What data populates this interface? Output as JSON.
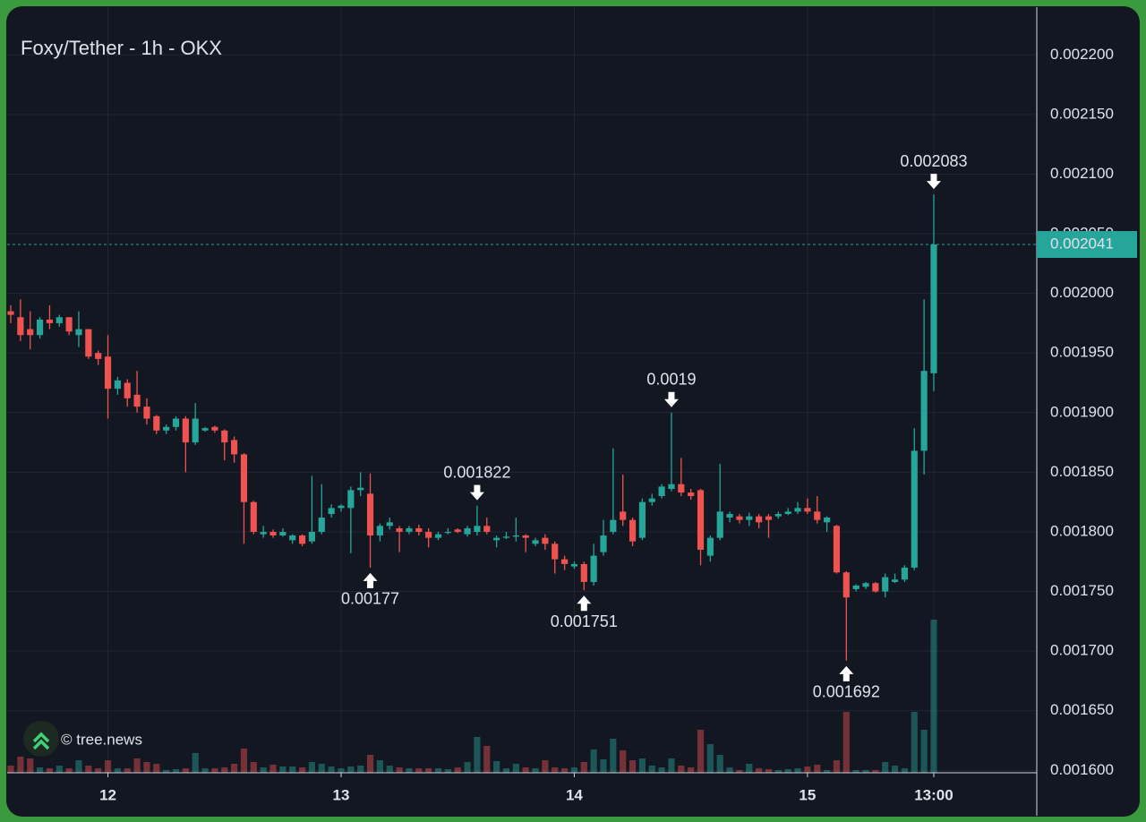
{
  "chart_data": {
    "type": "candlestick",
    "title": "Foxy/Tether - 1h - OKX",
    "watermark": "© tree.news",
    "up_color": "#26a69a",
    "down_color": "#ef5350",
    "grid": true,
    "open": [
      0.001985,
      0.00198,
      0.00197,
      0.001965,
      0.001978,
      0.001975,
      0.00198,
      0.001965,
      0.00197,
      0.00195,
      0.001947,
      0.00192,
      0.001925,
      0.001915,
      0.001905,
      0.001897,
      0.001885,
      0.001888,
      0.001895,
      0.001875,
      0.001885,
      0.001888,
      0.001885,
      0.001877,
      0.001865,
      0.001825,
      0.001798,
      0.0018,
      0.001797,
      0.001793,
      0.001797,
      0.001792,
      0.0018,
      0.001815,
      0.00182,
      0.00182,
      0.001835,
      0.001832,
      0.001797,
      0.001805,
      0.001803,
      0.0018,
      0.001803,
      0.0018,
      0.001795,
      0.0018,
      0.001802,
      0.001798,
      0.0018,
      0.001805,
      0.001793,
      0.001795,
      0.001796,
      0.001797,
      0.00179,
      0.001795,
      0.00179,
      0.001777,
      0.001771,
      0.001773,
      0.001758,
      0.001783,
      0.0018,
      0.001817,
      0.00181,
      0.001795,
      0.001825,
      0.00183,
      0.001836,
      0.00184,
      0.001833,
      0.001835,
      0.00178,
      0.001795,
      0.001812,
      0.001813,
      0.00181,
      0.001813,
      0.001813,
      0.001813,
      0.001815,
      0.001817,
      0.00182,
      0.001817,
      0.001808,
      0.001805,
      0.001766,
      0.001752,
      0.001754,
      0.001757,
      0.00175,
      0.001758,
      0.00176,
      0.00177,
      0.001868,
      0.001933
    ],
    "high": [
      0.00199,
      0.001995,
      0.001985,
      0.00198,
      0.00199,
      0.001982,
      0.00198,
      0.001985,
      0.00197,
      0.001952,
      0.001965,
      0.00193,
      0.001928,
      0.001935,
      0.001912,
      0.001898,
      0.00189,
      0.001897,
      0.001897,
      0.001908,
      0.001888,
      0.001889,
      0.001886,
      0.00188,
      0.001866,
      0.001826,
      0.001805,
      0.001802,
      0.001803,
      0.001798,
      0.001798,
      0.001847,
      0.00184,
      0.001823,
      0.001823,
      0.001838,
      0.00185,
      0.001849,
      0.001807,
      0.001812,
      0.001805,
      0.001805,
      0.001806,
      0.001803,
      0.0018,
      0.001803,
      0.001803,
      0.001805,
      0.001822,
      0.001812,
      0.001797,
      0.0018,
      0.001812,
      0.001798,
      0.001795,
      0.001798,
      0.001792,
      0.00178,
      0.001775,
      0.001775,
      0.00179,
      0.00181,
      0.00187,
      0.001848,
      0.001812,
      0.001828,
      0.001832,
      0.00184,
      0.0019,
      0.001862,
      0.001836,
      0.001836,
      0.001797,
      0.001857,
      0.001817,
      0.001815,
      0.001816,
      0.001815,
      0.001815,
      0.001817,
      0.00182,
      0.001825,
      0.001828,
      0.00183,
      0.001813,
      0.001806,
      0.001767,
      0.001756,
      0.001758,
      0.001758,
      0.001765,
      0.001765,
      0.001772,
      0.001887,
      0.001995,
      0.002083
    ],
    "low": [
      0.001975,
      0.00196,
      0.001953,
      0.001962,
      0.00197,
      0.001972,
      0.001965,
      0.001955,
      0.001945,
      0.00194,
      0.001895,
      0.001915,
      0.001905,
      0.0019,
      0.00189,
      0.001882,
      0.001882,
      0.001885,
      0.00185,
      0.001873,
      0.001884,
      0.001883,
      0.00186,
      0.001858,
      0.00179,
      0.001798,
      0.001795,
      0.001795,
      0.001796,
      0.00179,
      0.001788,
      0.00179,
      0.001798,
      0.001812,
      0.001817,
      0.001782,
      0.00183,
      0.00177,
      0.001792,
      0.001802,
      0.001783,
      0.001798,
      0.001797,
      0.001787,
      0.001793,
      0.001798,
      0.001799,
      0.001796,
      0.001797,
      0.001798,
      0.001787,
      0.001794,
      0.001792,
      0.001783,
      0.001788,
      0.001785,
      0.001765,
      0.001768,
      0.001769,
      0.001751,
      0.001755,
      0.00178,
      0.001798,
      0.001805,
      0.001788,
      0.001793,
      0.001822,
      0.001828,
      0.001834,
      0.00183,
      0.001827,
      0.001772,
      0.001775,
      0.001793,
      0.001808,
      0.001807,
      0.001805,
      0.001803,
      0.001795,
      0.001811,
      0.001814,
      0.001815,
      0.001815,
      0.001807,
      0.0018,
      0.001765,
      0.001692,
      0.00175,
      0.001752,
      0.001749,
      0.001745,
      0.001757,
      0.001758,
      0.001768,
      0.001848,
      0.001918
    ],
    "close": [
      0.001982,
      0.001965,
      0.001965,
      0.001978,
      0.001975,
      0.00198,
      0.001968,
      0.00197,
      0.001947,
      0.001945,
      0.00192,
      0.001927,
      0.001912,
      0.001905,
      0.001895,
      0.001885,
      0.001888,
      0.001895,
      0.001875,
      0.001895,
      0.001887,
      0.001885,
      0.001875,
      0.001865,
      0.001825,
      0.0018,
      0.0018,
      0.001797,
      0.0018,
      0.001797,
      0.00179,
      0.0018,
      0.001812,
      0.00182,
      0.001822,
      0.001835,
      0.001837,
      0.001797,
      0.001805,
      0.001808,
      0.0018,
      0.001803,
      0.0018,
      0.001795,
      0.001798,
      0.0018,
      0.0018,
      0.001803,
      0.001805,
      0.0018,
      0.001795,
      0.001796,
      0.001797,
      0.001795,
      0.001793,
      0.00179,
      0.001777,
      0.001773,
      0.001773,
      0.001758,
      0.00178,
      0.001797,
      0.00181,
      0.00181,
      0.001792,
      0.001825,
      0.001828,
      0.001838,
      0.00184,
      0.001833,
      0.00183,
      0.001785,
      0.001795,
      0.001817,
      0.001815,
      0.00181,
      0.001813,
      0.001808,
      0.00181,
      0.001815,
      0.001817,
      0.00182,
      0.001817,
      0.00181,
      0.001812,
      0.001766,
      0.001745,
      0.001755,
      0.001757,
      0.00175,
      0.001762,
      0.00176,
      0.00177,
      0.001868,
      0.001935,
      0.002041
    ],
    "volume": [
      8,
      18,
      16,
      6,
      5,
      8,
      5,
      14,
      8,
      5,
      14,
      5,
      5,
      16,
      12,
      10,
      3,
      4,
      5,
      22,
      5,
      5,
      6,
      10,
      27,
      12,
      6,
      9,
      7,
      7,
      6,
      12,
      10,
      7,
      5,
      7,
      8,
      20,
      14,
      8,
      6,
      5,
      5,
      5,
      5,
      4,
      6,
      12,
      40,
      30,
      13,
      5,
      10,
      6,
      5,
      14,
      6,
      5,
      6,
      12,
      26,
      15,
      38,
      25,
      14,
      16,
      8,
      6,
      16,
      8,
      6,
      48,
      32,
      20,
      6,
      3,
      10,
      5,
      4,
      3,
      4,
      5,
      7,
      9,
      3,
      14,
      68,
      3,
      3,
      3,
      12,
      8,
      5,
      68,
      48,
      171
    ],
    "marked_extremes": [
      0.00177,
      0.001822,
      0.001751,
      0.0019,
      0.001692,
      0.002083
    ],
    "xlim": [
      -0.37,
      105.6
    ],
    "xticks": [
      {
        "value": 10,
        "label": "12"
      },
      {
        "value": 34,
        "label": "13"
      },
      {
        "value": 58,
        "label": "14"
      },
      {
        "value": 82,
        "label": "15"
      },
      {
        "value": 95,
        "label": "13:00"
      }
    ],
    "ylim": [
      0.001598,
      0.00224
    ],
    "yticks": [
      {
        "value": 0.0016,
        "label": "0.001600"
      },
      {
        "value": 0.00165,
        "label": "0.001650"
      },
      {
        "value": 0.0017,
        "label": "0.001700"
      },
      {
        "value": 0.00175,
        "label": "0.001750"
      },
      {
        "value": 0.0018,
        "label": "0.001800"
      },
      {
        "value": 0.00185,
        "label": "0.001850"
      },
      {
        "value": 0.0019,
        "label": "0.001900"
      },
      {
        "value": 0.00195,
        "label": "0.001950"
      },
      {
        "value": 0.002,
        "label": "0.002000"
      },
      {
        "value": 0.00205,
        "label": "0.002050"
      },
      {
        "value": 0.0021,
        "label": "0.002100"
      },
      {
        "value": 0.00215,
        "label": "0.002150"
      },
      {
        "value": 0.0022,
        "label": "0.002200"
      }
    ]
  }
}
